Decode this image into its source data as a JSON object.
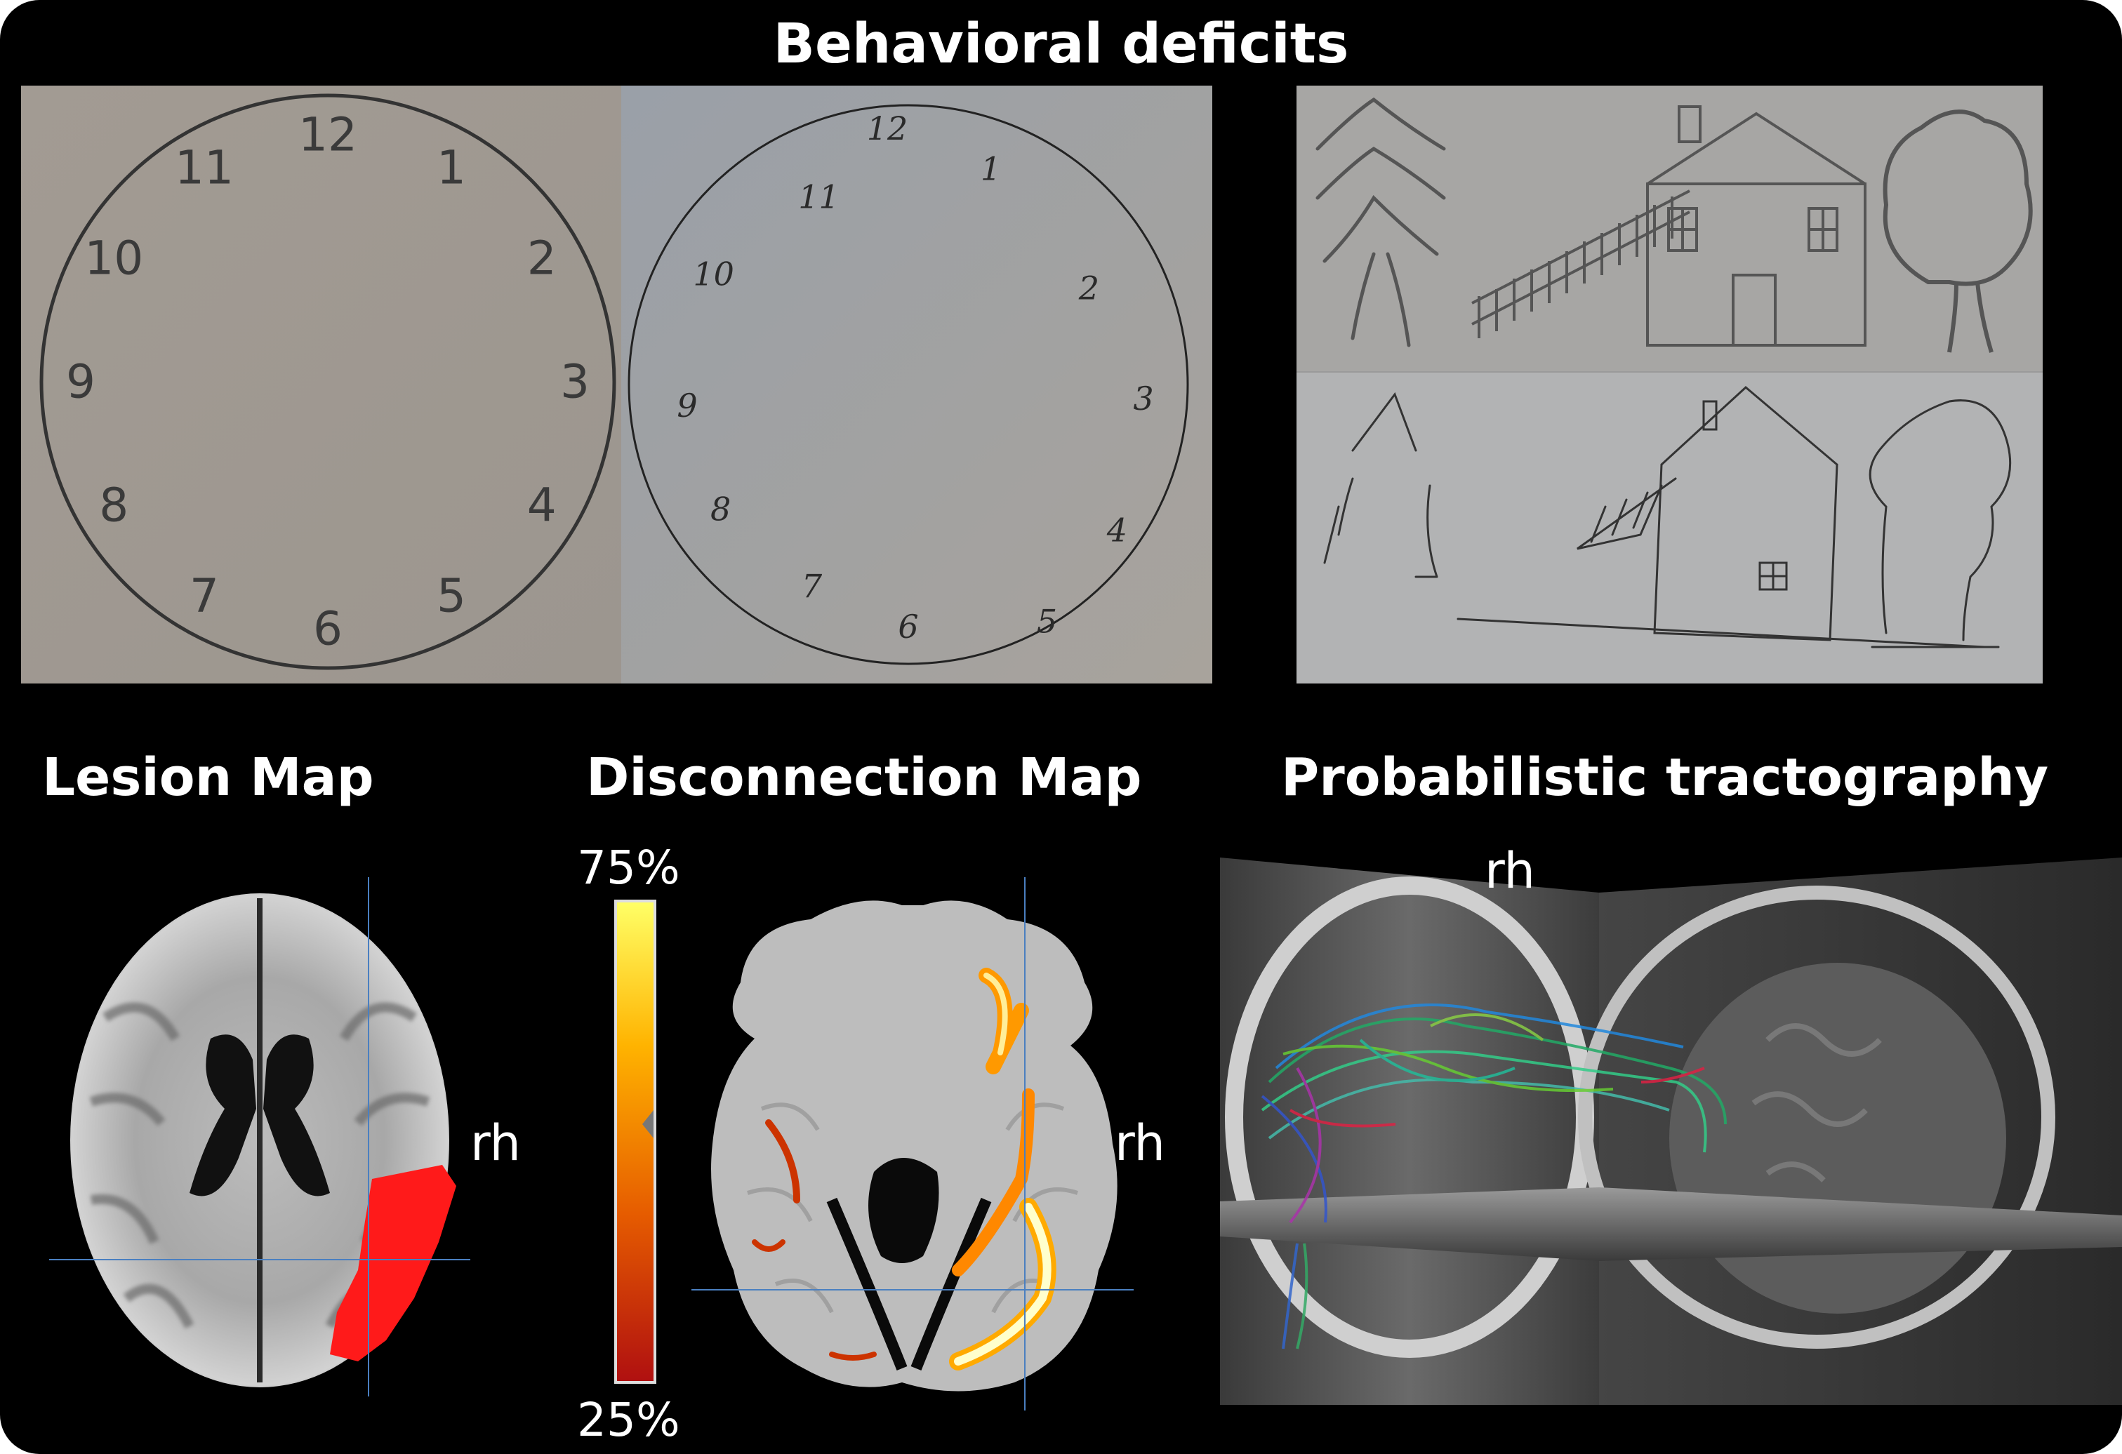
{
  "header": {
    "title": "Behavioral deficits"
  },
  "clock_template": {
    "numbers": [
      "12",
      "1",
      "2",
      "3",
      "4",
      "5",
      "6",
      "7",
      "8",
      "9",
      "10",
      "11"
    ]
  },
  "clock_patient": {
    "numbers": [
      "12",
      "1",
      "2",
      "3",
      "4",
      "5",
      "6",
      "7",
      "8",
      "9",
      "10",
      "11"
    ]
  },
  "sections": {
    "lesion": {
      "title": "Lesion Map",
      "hemisphere_label": "rh",
      "lesion_color": "#ff1a1a"
    },
    "disconnection": {
      "title": "Disconnection Map",
      "hemisphere_label": "rh",
      "scale_max": "75%",
      "scale_min": "25%"
    },
    "tractography": {
      "title": "Probabilistic tractography",
      "hemisphere_label": "rh"
    }
  },
  "colors": {
    "background": "#000000",
    "paper": "#a8a49e",
    "crosshair": "#4a7fc0"
  }
}
